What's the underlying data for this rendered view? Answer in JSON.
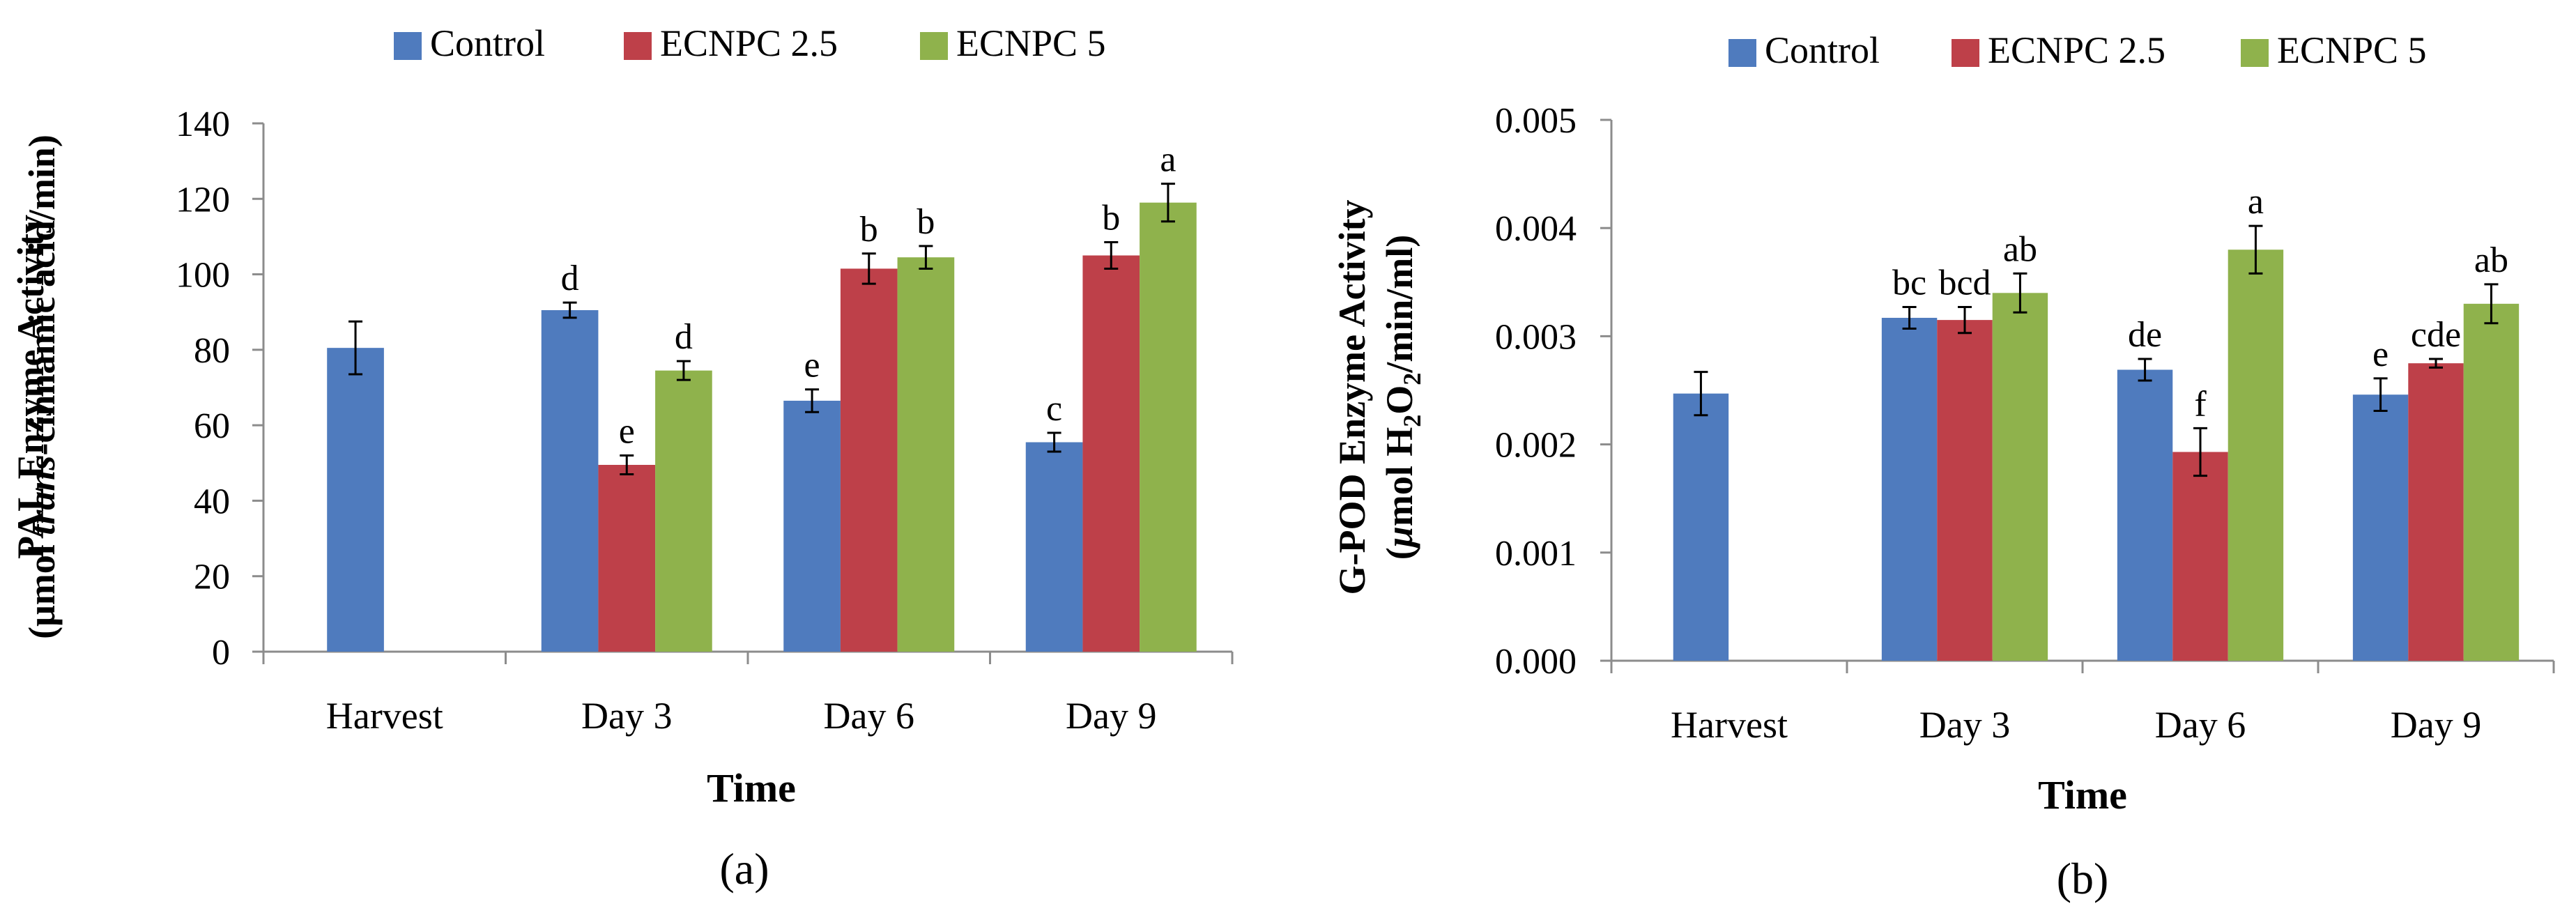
{
  "series_colors": [
    "#4F7BBE",
    "#BE4049",
    "#8FB24C"
  ],
  "chart_data": [
    {
      "type": "bar",
      "panel_label": "(a)",
      "categories": [
        "Harvest",
        "Day 3",
        "Day 6",
        "Day 9"
      ],
      "legend": [
        "Control",
        "ECNPC 2.5",
        "ECNPC 5"
      ],
      "series": [
        {
          "name": "Control",
          "values": [
            80.5,
            90.5,
            66.5,
            55.5
          ],
          "errors": [
            7,
            2,
            3,
            2.5
          ],
          "letters": [
            "",
            "d",
            "e",
            "c"
          ]
        },
        {
          "name": "ECNPC 2.5",
          "values": [
            null,
            49.5,
            101.5,
            105
          ],
          "errors": [
            null,
            2.5,
            4,
            3.5
          ],
          "letters": [
            "",
            "e",
            "b",
            "b"
          ]
        },
        {
          "name": "ECNPC 5",
          "values": [
            null,
            74.5,
            104.5,
            119
          ],
          "errors": [
            null,
            2.5,
            3,
            5
          ],
          "letters": [
            "",
            "d",
            "b",
            "a"
          ]
        }
      ],
      "ylim": [
        0,
        140
      ],
      "yticks": [
        "0",
        "20",
        "40",
        "60",
        "80",
        "100",
        "120",
        "140"
      ],
      "xlabel": "Time",
      "ylabel_line1": "PAL Enzyme Activity",
      "ylabel_line2_prefix": "(μmol ",
      "ylabel_line2_italic": "trans",
      "ylabel_line2_suffix": "-cinnamic acid/min)"
    },
    {
      "type": "bar",
      "panel_label": "(b)",
      "categories": [
        "Harvest",
        "Day 3",
        "Day 6",
        "Day 9"
      ],
      "legend": [
        "Control",
        "ECNPC 2.5",
        "ECNPC 5"
      ],
      "series": [
        {
          "name": "Control",
          "values": [
            0.00247,
            0.00317,
            0.00269,
            0.00246
          ],
          "errors": [
            0.0002,
            0.0001,
            0.0001,
            0.00015
          ],
          "letters": [
            "",
            "bc",
            "de",
            "e"
          ]
        },
        {
          "name": "ECNPC 2.5",
          "values": [
            null,
            0.00315,
            0.00193,
            0.00275
          ],
          "errors": [
            null,
            0.00012,
            0.00022,
            4e-05
          ],
          "letters": [
            "",
            "bcd",
            "f",
            "cde"
          ]
        },
        {
          "name": "ECNPC 5",
          "values": [
            null,
            0.0034,
            0.0038,
            0.0033
          ],
          "errors": [
            null,
            0.00018,
            0.00022,
            0.00018
          ],
          "letters": [
            "",
            "ab",
            "a",
            "ab"
          ]
        }
      ],
      "ylim": [
        0,
        0.005
      ],
      "yticks": [
        "0.000",
        "0.001",
        "0.002",
        "0.003",
        "0.004",
        "0.005"
      ],
      "xlabel": "Time",
      "ylabel_line1": "G-POD Enzyme Activity",
      "ylabel_line2_prefix": "(",
      "ylabel_line2_italic": "μ",
      "ylabel_line2_mid": "mol H",
      "ylabel_line2_sub1": "2",
      "ylabel_line2_o": "O",
      "ylabel_line2_sub2": "2",
      "ylabel_line2_suffix": "/min/ml)"
    }
  ]
}
